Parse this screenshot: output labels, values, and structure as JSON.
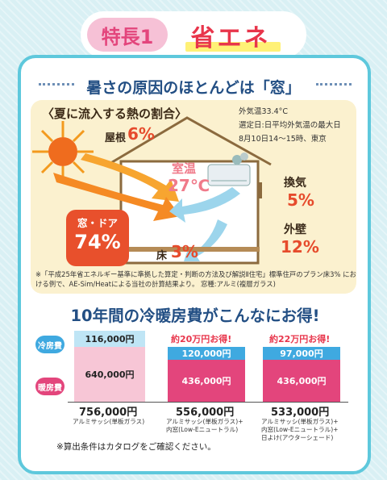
{
  "badge": {
    "feature": "特長1",
    "title": "省エネ"
  },
  "headline": "暑さの原因のほとんどは「窓」",
  "heat": {
    "title": "〈夏に流入する熱の割合〉",
    "conditions": [
      "外気温33.4°C",
      "選定日:日平均外気温の最大日",
      "8月10日14～15時、東京"
    ],
    "roof_label": "屋根",
    "roof_pct": "6%",
    "room_label": "室温",
    "room_temp": "27℃",
    "vent_label": "換気",
    "vent_pct": "5%",
    "wall_label": "外壁",
    "wall_pct": "12%",
    "window_label": "窓・ドア",
    "window_pct": "74%",
    "floor_label": "床",
    "floor_pct": "3%",
    "note": "※「平成25年省エネルギー基準に準拠した算定・判断の方法及び解説Ⅱ住宅」標準住戸のプラン床3% における例で、AE-Sim/Heatによる当社の計算結果より。 窓種:アルミ(複層ガラス)"
  },
  "section2": "10年間の冷暖房費がこんなにお得!",
  "legend": {
    "cooling": "冷房費",
    "heating": "暖房費"
  },
  "costs": [
    {
      "cooling": "116,000円",
      "heating": "640,000円",
      "total": "756,000円",
      "sub": [
        "アルミサッシ(単板ガラス)"
      ],
      "saving": ""
    },
    {
      "cooling": "120,000円",
      "heating": "436,000円",
      "total": "556,000円",
      "sub": [
        "アルミサッシ(単板ガラス)+",
        "内窓(Low-Eニュートラル)"
      ],
      "saving": "約20万円お得!"
    },
    {
      "cooling": "97,000円",
      "heating": "436,000円",
      "total": "533,000円",
      "sub": [
        "アルミサッシ(単板ガラス)+",
        "内窓(Low-Eニュートラル)+",
        "日よけ(アウターシェード)"
      ],
      "saving": "約22万円お得!"
    }
  ],
  "footnote": "※算出条件はカタログをご確認ください。",
  "colors": {
    "accent": "#5ec8dc",
    "navy": "#234f84",
    "red": "#e8354b",
    "cool": "#3fa9e0",
    "heat": "#e3457c"
  }
}
